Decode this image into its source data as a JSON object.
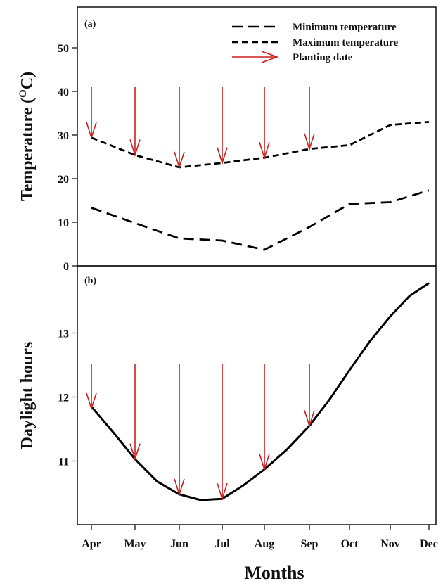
{
  "chart_data": [
    {
      "panel": "(a)",
      "type": "line",
      "ylabel": "Temperature (",
      "ylabel_sup": "O",
      "ylabel_tail": "C)",
      "ylim": [
        0,
        55
      ],
      "yticks": [
        0,
        10,
        20,
        30,
        40,
        50
      ],
      "series": [
        {
          "name": "Minimum temperature",
          "style": "long-dash",
          "color": "#000000",
          "x": [
            0.0,
            1.0,
            2.0,
            3.0,
            4.0,
            5.0,
            6.0,
            7.0,
            8.0
          ],
          "y": [
            13.3,
            9.8,
            6.3,
            5.8,
            3.7,
            8.9,
            14.2,
            14.6,
            17.3
          ]
        },
        {
          "name": "Maximum temperature",
          "style": "short-dash",
          "color": "#000000",
          "x": [
            0.0,
            1.0,
            2.0,
            3.0,
            4.0,
            5.0,
            6.0,
            7.0,
            8.0
          ],
          "y": [
            29.4,
            25.4,
            22.6,
            23.6,
            24.8,
            26.8,
            27.7,
            32.3,
            33.0
          ]
        }
      ],
      "planting_dates": {
        "name": "Planting date",
        "color": "#cc1f1f",
        "x": [
          0.0,
          1.0,
          2.0,
          3.0,
          4.0,
          5.0
        ],
        "y_tip": [
          29.4,
          25.4,
          22.6,
          23.6,
          24.8,
          26.8
        ],
        "y_top": 41
      }
    },
    {
      "panel": "(b)",
      "type": "line",
      "ylabel": "Daylight hours",
      "ylim": [
        9.85,
        13.8
      ],
      "yticks": [
        11,
        12,
        13
      ],
      "series": [
        {
          "name": "",
          "style": "solid",
          "color": "#000000",
          "x": [
            0.0,
            0.5,
            1.0,
            1.5,
            2.0,
            2.5,
            3.0,
            3.5,
            4.0,
            4.5,
            5.0,
            5.5,
            6.0,
            6.5,
            7.0,
            7.5,
            8.0
          ],
          "y": [
            11.85,
            11.45,
            11.03,
            10.68,
            10.48,
            10.39,
            10.41,
            10.62,
            10.87,
            11.18,
            11.55,
            11.96,
            12.42,
            12.87,
            13.26,
            13.58,
            13.78
          ]
        }
      ],
      "planting_dates": {
        "name": "Planting date",
        "color": "#cc1f1f",
        "x": [
          0.0,
          1.0,
          2.0,
          3.0,
          4.0,
          5.0
        ],
        "y_tip": [
          11.82,
          11.03,
          10.48,
          10.41,
          10.87,
          11.55
        ],
        "y_top": 12.52
      }
    }
  ],
  "x_categories": [
    "Apr",
    "May",
    "Jun",
    "Jul",
    "Aug",
    "Sep",
    "Oct",
    "Nov",
    "Dec"
  ],
  "xlabel": "Months"
}
